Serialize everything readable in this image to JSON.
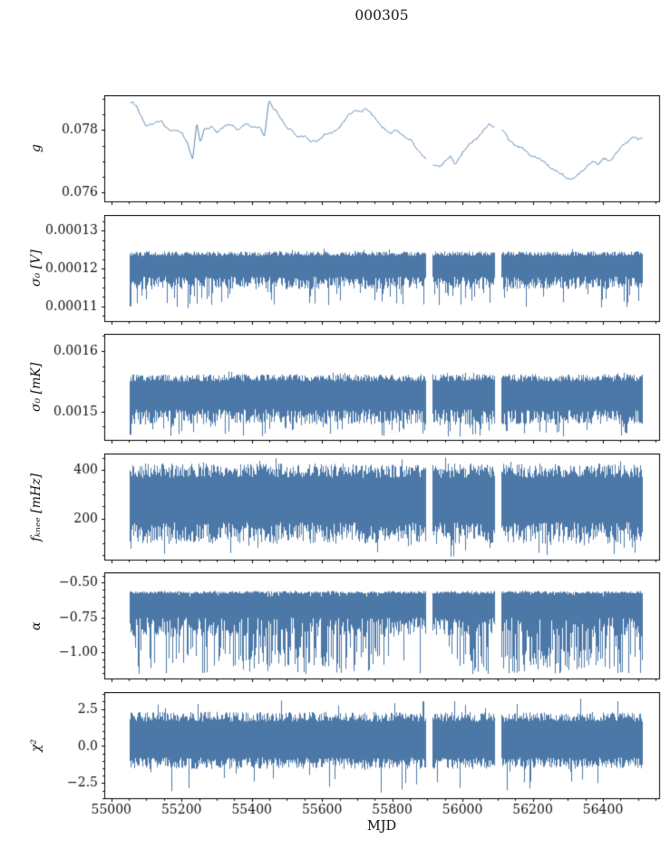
{
  "figure": {
    "title": "000305"
  },
  "chart_data": {
    "type": "line",
    "title": "000305",
    "xlabel": "MJD",
    "grid": false,
    "legend": null,
    "xlim": [
      54980,
      56560
    ],
    "x_ticks": [
      55000,
      55200,
      55400,
      55600,
      55800,
      56000,
      56200,
      56400
    ],
    "x_tick_labels": [
      "55000",
      "55200",
      "55400",
      "55600",
      "55800",
      "56000",
      "56200",
      "56400"
    ],
    "x_minor_step": 50,
    "data_start": 55052,
    "data_end": 56512,
    "gaps": [
      [
        55896,
        55914
      ],
      [
        56092,
        56110
      ]
    ],
    "line_color": "#4c78a8",
    "panels": [
      {
        "id": "g",
        "ylabel": "g",
        "ylim": [
          0.0757,
          0.0791
        ],
        "yticks": [
          0.076,
          0.078
        ],
        "ytick_labels": [
          "0.076",
          "0.078"
        ],
        "yminor_step": 0.0005,
        "series": {
          "kind": "smooth",
          "noise": 4e-05,
          "keypoints": [
            [
              55052,
              0.0789
            ],
            [
              55070,
              0.0788
            ],
            [
              55085,
              0.0784
            ],
            [
              55100,
              0.0781
            ],
            [
              55120,
              0.0782
            ],
            [
              55140,
              0.0783
            ],
            [
              55160,
              0.078
            ],
            [
              55185,
              0.078
            ],
            [
              55200,
              0.0779
            ],
            [
              55215,
              0.0776
            ],
            [
              55230,
              0.077
            ],
            [
              55242,
              0.0782
            ],
            [
              55252,
              0.0776
            ],
            [
              55262,
              0.078
            ],
            [
              55285,
              0.0781
            ],
            [
              55300,
              0.0779
            ],
            [
              55320,
              0.0781
            ],
            [
              55340,
              0.0782
            ],
            [
              55360,
              0.078
            ],
            [
              55380,
              0.0782
            ],
            [
              55400,
              0.0781
            ],
            [
              55420,
              0.0781
            ],
            [
              55435,
              0.0778
            ],
            [
              55448,
              0.079
            ],
            [
              55458,
              0.0787
            ],
            [
              55470,
              0.0786
            ],
            [
              55482,
              0.0784
            ],
            [
              55495,
              0.0781
            ],
            [
              55510,
              0.078
            ],
            [
              55530,
              0.0778
            ],
            [
              55550,
              0.0778
            ],
            [
              55570,
              0.0776
            ],
            [
              55590,
              0.0777
            ],
            [
              55610,
              0.0779
            ],
            [
              55630,
              0.0779
            ],
            [
              55650,
              0.0781
            ],
            [
              55670,
              0.0784
            ],
            [
              55690,
              0.0786
            ],
            [
              55710,
              0.0786
            ],
            [
              55725,
              0.0787
            ],
            [
              55740,
              0.0785
            ],
            [
              55755,
              0.0783
            ],
            [
              55770,
              0.0781
            ],
            [
              55790,
              0.0779
            ],
            [
              55810,
              0.078
            ],
            [
              55830,
              0.0778
            ],
            [
              55850,
              0.0777
            ],
            [
              55870,
              0.0774
            ],
            [
              55890,
              0.0771
            ],
            [
              55916,
              0.0769
            ],
            [
              55935,
              0.0768
            ],
            [
              55950,
              0.077
            ],
            [
              55965,
              0.0772
            ],
            [
              55980,
              0.0769
            ],
            [
              56000,
              0.0773
            ],
            [
              56020,
              0.0776
            ],
            [
              56040,
              0.0777
            ],
            [
              56060,
              0.078
            ],
            [
              56075,
              0.0782
            ],
            [
              56090,
              0.0781
            ],
            [
              56112,
              0.078
            ],
            [
              56130,
              0.0777
            ],
            [
              56150,
              0.0775
            ],
            [
              56170,
              0.0774
            ],
            [
              56190,
              0.0772
            ],
            [
              56210,
              0.0771
            ],
            [
              56230,
              0.077
            ],
            [
              56250,
              0.0768
            ],
            [
              56270,
              0.0767
            ],
            [
              56290,
              0.0765
            ],
            [
              56310,
              0.0764
            ],
            [
              56330,
              0.0766
            ],
            [
              56350,
              0.0768
            ],
            [
              56370,
              0.077
            ],
            [
              56385,
              0.0769
            ],
            [
              56400,
              0.0771
            ],
            [
              56420,
              0.077
            ],
            [
              56440,
              0.0773
            ],
            [
              56455,
              0.0775
            ],
            [
              56470,
              0.0776
            ],
            [
              56485,
              0.0778
            ],
            [
              56500,
              0.0777
            ],
            [
              56512,
              0.0778
            ]
          ]
        }
      },
      {
        "id": "sigma0-v",
        "ylabel": "σ₀ [V]",
        "ylim": [
          0.000106,
          0.000134
        ],
        "yticks": [
          0.00011,
          0.00012,
          0.00013
        ],
        "ytick_labels": [
          "0.00011",
          "0.00012",
          "0.00013"
        ],
        "yminor_step": 2.5e-06,
        "series": {
          "kind": "band",
          "center": 0.0001197,
          "half_top": 4.8e-06,
          "half_bottom": 5.2e-06,
          "top_jitter": 0.25,
          "bottom_jitter": 0.65,
          "spike_down": 1.02e-05,
          "spike_up": 5.5e-06,
          "spike_prob": 0.1,
          "start_spike": true
        }
      },
      {
        "id": "sigma0-mk",
        "ylabel": "σ₀ [mK]",
        "ylim": [
          0.001452,
          0.001628
        ],
        "yticks": [
          0.0015,
          0.0016
        ],
        "ytick_labels": [
          "0.0015",
          "0.0016"
        ],
        "yminor_step": 2.5e-05,
        "series": {
          "kind": "band",
          "center": 0.001521,
          "half_top": 4.1e-05,
          "half_bottom": 4.3e-05,
          "top_jitter": 0.3,
          "bottom_jitter": 0.6,
          "spike_down": 6.3e-05,
          "spike_up": 4.6e-05,
          "spike_prob": 0.15,
          "start_spike": true
        }
      },
      {
        "id": "fknee",
        "ylabel": "fₖₙₑₑ [mHz]",
        "ylim": [
          30,
          465
        ],
        "yticks": [
          200,
          400
        ],
        "ytick_labels": [
          "200",
          "400"
        ],
        "yminor_step": 50,
        "series": {
          "kind": "band",
          "center": 258,
          "half_top": 168,
          "half_bottom": 162,
          "top_jitter": 0.35,
          "bottom_jitter": 0.55,
          "spike_down": 215,
          "spike_up": 195,
          "spike_prob": 0.06
        }
      },
      {
        "id": "alpha",
        "ylabel": "α",
        "ylim": [
          -1.19,
          -0.43
        ],
        "yticks": [
          -0.5,
          -0.75,
          -1.0
        ],
        "ytick_labels": [
          "−0.50",
          "−0.75",
          "−1.00"
        ],
        "yminor_step": 0.05,
        "series": {
          "kind": "band",
          "center": -0.715,
          "half_top": 0.155,
          "half_bottom": 0.175,
          "top_jitter": 0.12,
          "bottom_jitter": 0.8,
          "spike_down": 0.44,
          "spike_up": 0.16,
          "spike_prob": 0.4,
          "spike_mod": true
        }
      },
      {
        "id": "chi2",
        "ylabel": "χ²",
        "ylim": [
          -3.55,
          3.6
        ],
        "yticks": [
          -2.5,
          0.0,
          2.5
        ],
        "ytick_labels": [
          "−2.5",
          "0.0",
          "2.5"
        ],
        "yminor_step": 0.5,
        "series": {
          "kind": "band",
          "center": 0.4,
          "half_top": 1.9,
          "half_bottom": 1.95,
          "top_jitter": 0.35,
          "bottom_jitter": 0.4,
          "spike_down": 3.6,
          "spike_up": 2.85,
          "spike_prob": 0.05
        }
      }
    ]
  }
}
